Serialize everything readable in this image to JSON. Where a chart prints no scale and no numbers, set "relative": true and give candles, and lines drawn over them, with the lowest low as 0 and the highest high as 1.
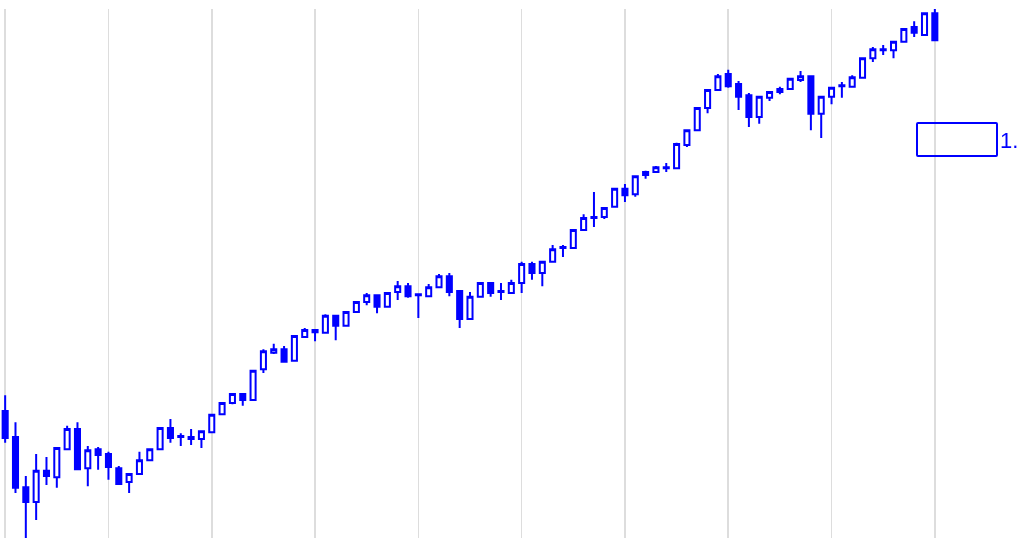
{
  "chart_data": {
    "type": "candlestick",
    "relative": true,
    "color": "#0000ff",
    "grid": "x",
    "annotations": [
      "1."
    ],
    "categories": [
      null,
      null,
      null,
      null,
      null,
      null,
      null,
      null,
      null,
      null,
      null,
      null,
      null,
      null,
      null,
      null,
      null,
      null,
      null,
      null,
      null,
      null,
      null,
      null,
      null,
      null,
      null,
      null,
      null,
      null,
      null,
      null,
      null,
      null,
      null,
      null,
      null,
      null,
      null,
      null,
      null,
      null,
      null,
      null,
      null,
      null,
      null,
      null,
      null,
      null,
      null,
      null,
      null,
      null,
      null,
      null,
      null,
      null,
      null,
      null,
      null,
      null,
      null,
      null,
      null,
      null,
      null,
      null,
      null,
      null,
      null,
      null,
      null,
      null,
      null,
      null,
      null,
      null,
      null,
      null,
      null,
      null,
      null,
      null,
      null,
      null,
      null,
      null,
      null,
      null,
      null
    ],
    "ohlc": [
      [
        0.24,
        0.27,
        0.18,
        0.189
      ],
      [
        0.191,
        0.219,
        0.085,
        0.095
      ],
      [
        0.096,
        0.117,
        0,
        0.068
      ],
      [
        0.068,
        0.159,
        0.034,
        0.127
      ],
      [
        0.127,
        0.153,
        0.1,
        0.117
      ],
      [
        0.115,
        0.172,
        0.095,
        0.17
      ],
      [
        0.168,
        0.212,
        0.168,
        0.206
      ],
      [
        0.206,
        0.219,
        0.129,
        0.13
      ],
      [
        0.132,
        0.174,
        0.098,
        0.166
      ],
      [
        0.168,
        0.172,
        0.129,
        0.157
      ],
      [
        0.159,
        0.163,
        0.11,
        0.134
      ],
      [
        0.132,
        0.136,
        0.1,
        0.102
      ],
      [
        0.106,
        0.123,
        0.085,
        0.121
      ],
      [
        0.121,
        0.163,
        0.121,
        0.147
      ],
      [
        0.147,
        0.168,
        0.147,
        0.168
      ],
      [
        0.168,
        0.21,
        0.168,
        0.208
      ],
      [
        0.208,
        0.225,
        0.18,
        0.189
      ],
      [
        0.193,
        0.198,
        0.174,
        0.191
      ],
      [
        0.191,
        0.206,
        0.176,
        0.187
      ],
      [
        0.187,
        0.202,
        0.17,
        0.202
      ],
      [
        0.2,
        0.233,
        0.2,
        0.233
      ],
      [
        0.234,
        0.255,
        0.234,
        0.255
      ],
      [
        0.255,
        0.272,
        0.253,
        0.272
      ],
      [
        0.272,
        0.272,
        0.25,
        0.261
      ],
      [
        0.261,
        0.316,
        0.261,
        0.316
      ],
      [
        0.319,
        0.357,
        0.312,
        0.353
      ],
      [
        0.35,
        0.367,
        0.348,
        0.357
      ],
      [
        0.357,
        0.363,
        0.333,
        0.333
      ],
      [
        0.335,
        0.382,
        0.335,
        0.382
      ],
      [
        0.38,
        0.397,
        0.38,
        0.393
      ],
      [
        0.393,
        0.393,
        0.372,
        0.389
      ],
      [
        0.388,
        0.423,
        0.388,
        0.42
      ],
      [
        0.42,
        0.42,
        0.374,
        0.401
      ],
      [
        0.401,
        0.427,
        0.401,
        0.427
      ],
      [
        0.427,
        0.448,
        0.427,
        0.446
      ],
      [
        0.446,
        0.463,
        0.44,
        0.459
      ],
      [
        0.459,
        0.459,
        0.425,
        0.437
      ],
      [
        0.437,
        0.463,
        0.437,
        0.463
      ],
      [
        0.465,
        0.486,
        0.45,
        0.476
      ],
      [
        0.476,
        0.482,
        0.454,
        0.457
      ],
      [
        0.459,
        0.461,
        0.416,
        0.461
      ],
      [
        0.457,
        0.48,
        0.456,
        0.474
      ],
      [
        0.474,
        0.499,
        0.474,
        0.495
      ],
      [
        0.495,
        0.501,
        0.457,
        0.465
      ],
      [
        0.467,
        0.467,
        0.397,
        0.414
      ],
      [
        0.414,
        0.465,
        0.414,
        0.456
      ],
      [
        0.456,
        0.482,
        0.456,
        0.482
      ],
      [
        0.482,
        0.482,
        0.456,
        0.463
      ],
      [
        0.465,
        0.482,
        0.45,
        0.467
      ],
      [
        0.463,
        0.488,
        0.463,
        0.482
      ],
      [
        0.482,
        0.522,
        0.463,
        0.518
      ],
      [
        0.518,
        0.522,
        0.488,
        0.501
      ],
      [
        0.501,
        0.522,
        0.476,
        0.522
      ],
      [
        0.522,
        0.554,
        0.522,
        0.546
      ],
      [
        0.548,
        0.554,
        0.531,
        0.55
      ],
      [
        0.548,
        0.582,
        0.548,
        0.582
      ],
      [
        0.582,
        0.612,
        0.582,
        0.605
      ],
      [
        0.605,
        0.654,
        0.588,
        0.607
      ],
      [
        0.607,
        0.624,
        0.603,
        0.624
      ],
      [
        0.626,
        0.66,
        0.626,
        0.66
      ],
      [
        0.66,
        0.669,
        0.635,
        0.648
      ],
      [
        0.65,
        0.684,
        0.645,
        0.684
      ],
      [
        0.686,
        0.694,
        0.679,
        0.692
      ],
      [
        0.692,
        0.703,
        0.692,
        0.701
      ],
      [
        0.699,
        0.709,
        0.692,
        0.701
      ],
      [
        0.699,
        0.747,
        0.699,
        0.745
      ],
      [
        0.743,
        0.771,
        0.739,
        0.771
      ],
      [
        0.771,
        0.813,
        0.771,
        0.813
      ],
      [
        0.813,
        0.847,
        0.803,
        0.847
      ],
      [
        0.847,
        0.877,
        0.847,
        0.873
      ],
      [
        0.877,
        0.885,
        0.851,
        0.854
      ],
      [
        0.858,
        0.864,
        0.809,
        0.834
      ],
      [
        0.837,
        0.841,
        0.777,
        0.796
      ],
      [
        0.796,
        0.834,
        0.783,
        0.834
      ],
      [
        0.832,
        0.843,
        0.826,
        0.843
      ],
      [
        0.843,
        0.853,
        0.839,
        0.849
      ],
      [
        0.849,
        0.868,
        0.849,
        0.868
      ],
      [
        0.866,
        0.883,
        0.862,
        0.873
      ],
      [
        0.873,
        0.873,
        0.771,
        0.802
      ],
      [
        0.802,
        0.834,
        0.756,
        0.834
      ],
      [
        0.834,
        0.851,
        0.82,
        0.851
      ],
      [
        0.854,
        0.862,
        0.832,
        0.856
      ],
      [
        0.853,
        0.875,
        0.853,
        0.871
      ],
      [
        0.87,
        0.907,
        0.87,
        0.907
      ],
      [
        0.907,
        0.928,
        0.9,
        0.924
      ],
      [
        0.922,
        0.932,
        0.913,
        0.924
      ],
      [
        0.922,
        0.94,
        0.907,
        0.938
      ],
      [
        0.938,
        0.962,
        0.938,
        0.962
      ],
      [
        0.966,
        0.977,
        0.947,
        0.955
      ],
      [
        0.951,
        0.992,
        0.951,
        0.992
      ],
      [
        0.992,
        1,
        0.941,
        0.941
      ]
    ]
  }
}
